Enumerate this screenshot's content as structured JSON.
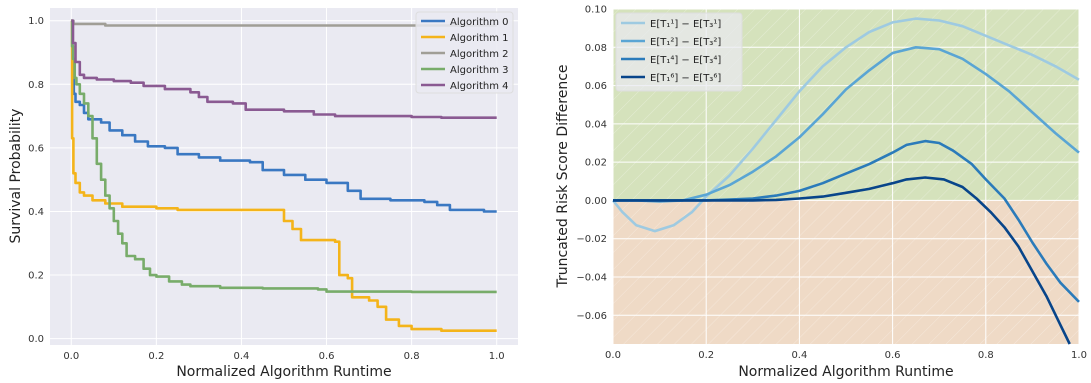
{
  "chart_data": [
    {
      "type": "line",
      "xlabel": "Normalized Algorithm Runtime",
      "ylabel": "Survival Probability",
      "xlim": [
        -0.05,
        1.05
      ],
      "ylim": [
        -0.02,
        1.04
      ],
      "xticks": [
        "0.0",
        "0.2",
        "0.4",
        "0.6",
        "0.8",
        "1.0"
      ],
      "yticks": [
        "0.0",
        "0.2",
        "0.4",
        "0.6",
        "0.8",
        "1.0"
      ],
      "grid": true,
      "legend_position": "top-right",
      "step": true,
      "series": [
        {
          "name": "Algorithm 0",
          "color": "#3a78c2",
          "points": [
            [
              0.0,
              1.0
            ],
            [
              0.003,
              0.85
            ],
            [
              0.006,
              0.77
            ],
            [
              0.01,
              0.745
            ],
            [
              0.02,
              0.735
            ],
            [
              0.03,
              0.71
            ],
            [
              0.04,
              0.69
            ],
            [
              0.07,
              0.68
            ],
            [
              0.09,
              0.655
            ],
            [
              0.12,
              0.64
            ],
            [
              0.15,
              0.62
            ],
            [
              0.18,
              0.605
            ],
            [
              0.22,
              0.6
            ],
            [
              0.25,
              0.58
            ],
            [
              0.3,
              0.57
            ],
            [
              0.35,
              0.56
            ],
            [
              0.42,
              0.555
            ],
            [
              0.45,
              0.53
            ],
            [
              0.5,
              0.515
            ],
            [
              0.55,
              0.5
            ],
            [
              0.6,
              0.49
            ],
            [
              0.65,
              0.465
            ],
            [
              0.68,
              0.44
            ],
            [
              0.75,
              0.435
            ],
            [
              0.83,
              0.43
            ],
            [
              0.86,
              0.42
            ],
            [
              0.89,
              0.405
            ],
            [
              0.97,
              0.4
            ],
            [
              1.0,
              0.4
            ]
          ]
        },
        {
          "name": "Algorithm 1",
          "color": "#f4b41a",
          "points": [
            [
              0.0,
              1.0
            ],
            [
              0.002,
              0.63
            ],
            [
              0.005,
              0.52
            ],
            [
              0.01,
              0.49
            ],
            [
              0.02,
              0.46
            ],
            [
              0.03,
              0.45
            ],
            [
              0.05,
              0.435
            ],
            [
              0.08,
              0.425
            ],
            [
              0.12,
              0.415
            ],
            [
              0.2,
              0.41
            ],
            [
              0.25,
              0.405
            ],
            [
              0.35,
              0.405
            ],
            [
              0.46,
              0.405
            ],
            [
              0.5,
              0.37
            ],
            [
              0.52,
              0.345
            ],
            [
              0.54,
              0.31
            ],
            [
              0.62,
              0.305
            ],
            [
              0.63,
              0.2
            ],
            [
              0.65,
              0.19
            ],
            [
              0.66,
              0.13
            ],
            [
              0.7,
              0.12
            ],
            [
              0.72,
              0.1
            ],
            [
              0.74,
              0.06
            ],
            [
              0.77,
              0.04
            ],
            [
              0.8,
              0.03
            ],
            [
              0.87,
              0.025
            ],
            [
              1.0,
              0.025
            ]
          ]
        },
        {
          "name": "Algorithm 2",
          "color": "#a09e96",
          "points": [
            [
              0.0,
              1.0
            ],
            [
              0.005,
              0.99
            ],
            [
              0.08,
              0.985
            ],
            [
              1.0,
              0.985
            ]
          ]
        },
        {
          "name": "Algorithm 3",
          "color": "#78ac6a",
          "points": [
            [
              0.0,
              1.0
            ],
            [
              0.002,
              0.92
            ],
            [
              0.004,
              0.88
            ],
            [
              0.008,
              0.82
            ],
            [
              0.012,
              0.8
            ],
            [
              0.02,
              0.77
            ],
            [
              0.03,
              0.74
            ],
            [
              0.04,
              0.7
            ],
            [
              0.05,
              0.63
            ],
            [
              0.06,
              0.55
            ],
            [
              0.07,
              0.5
            ],
            [
              0.08,
              0.45
            ],
            [
              0.09,
              0.41
            ],
            [
              0.1,
              0.37
            ],
            [
              0.11,
              0.33
            ],
            [
              0.12,
              0.3
            ],
            [
              0.13,
              0.26
            ],
            [
              0.15,
              0.25
            ],
            [
              0.17,
              0.22
            ],
            [
              0.185,
              0.2
            ],
            [
              0.2,
              0.195
            ],
            [
              0.23,
              0.18
            ],
            [
              0.26,
              0.17
            ],
            [
              0.28,
              0.165
            ],
            [
              0.35,
              0.16
            ],
            [
              0.45,
              0.158
            ],
            [
              0.58,
              0.155
            ],
            [
              0.6,
              0.148
            ],
            [
              0.8,
              0.147
            ],
            [
              1.0,
              0.147
            ]
          ]
        },
        {
          "name": "Algorithm 4",
          "color": "#8a5a92",
          "points": [
            [
              0.0,
              1.0
            ],
            [
              0.004,
              0.93
            ],
            [
              0.01,
              0.87
            ],
            [
              0.02,
              0.83
            ],
            [
              0.03,
              0.82
            ],
            [
              0.06,
              0.815
            ],
            [
              0.1,
              0.81
            ],
            [
              0.14,
              0.805
            ],
            [
              0.17,
              0.795
            ],
            [
              0.22,
              0.785
            ],
            [
              0.28,
              0.775
            ],
            [
              0.3,
              0.76
            ],
            [
              0.32,
              0.745
            ],
            [
              0.38,
              0.74
            ],
            [
              0.41,
              0.72
            ],
            [
              0.5,
              0.715
            ],
            [
              0.56,
              0.715
            ],
            [
              0.57,
              0.705
            ],
            [
              0.62,
              0.7
            ],
            [
              0.8,
              0.697
            ],
            [
              0.87,
              0.695
            ],
            [
              1.0,
              0.695
            ]
          ]
        }
      ]
    },
    {
      "type": "line",
      "xlabel": "Normalized Algorithm Runtime",
      "ylabel": "Truncated Risk Score Difference",
      "xlim": [
        0.0,
        1.0
      ],
      "ylim": [
        -0.075,
        0.1
      ],
      "xticks": [
        "0.0",
        "0.2",
        "0.4",
        "0.6",
        "0.8",
        "1.0"
      ],
      "yticks": [
        "−0.06",
        "−0.04",
        "−0.02",
        "0.00",
        "0.02",
        "0.04",
        "0.06",
        "0.08",
        "0.10"
      ],
      "grid": true,
      "legend_position": "top-left",
      "background_regions": [
        {
          "from": 0.0,
          "to": 0.1,
          "color": "#d5e2bc"
        },
        {
          "from": -0.075,
          "to": 0.0,
          "color": "#efdac6"
        }
      ],
      "series": [
        {
          "name": "E[T₁¹] − E[T₃¹]",
          "color": "#9ecae1",
          "points": [
            [
              0.0,
              0.0
            ],
            [
              0.02,
              -0.006
            ],
            [
              0.05,
              -0.013
            ],
            [
              0.09,
              -0.016
            ],
            [
              0.13,
              -0.013
            ],
            [
              0.17,
              -0.006
            ],
            [
              0.2,
              0.002
            ],
            [
              0.25,
              0.013
            ],
            [
              0.3,
              0.027
            ],
            [
              0.35,
              0.042
            ],
            [
              0.4,
              0.057
            ],
            [
              0.45,
              0.07
            ],
            [
              0.5,
              0.08
            ],
            [
              0.55,
              0.088
            ],
            [
              0.6,
              0.093
            ],
            [
              0.65,
              0.095
            ],
            [
              0.7,
              0.094
            ],
            [
              0.75,
              0.091
            ],
            [
              0.8,
              0.086
            ],
            [
              0.85,
              0.081
            ],
            [
              0.9,
              0.076
            ],
            [
              0.95,
              0.07
            ],
            [
              1.0,
              0.063
            ]
          ]
        },
        {
          "name": "E[T₁²] − E[T₃²]",
          "color": "#5aa5d4",
          "points": [
            [
              0.0,
              0.0
            ],
            [
              0.05,
              0.0
            ],
            [
              0.1,
              -0.0005
            ],
            [
              0.15,
              0.0
            ],
            [
              0.2,
              0.003
            ],
            [
              0.25,
              0.008
            ],
            [
              0.3,
              0.015
            ],
            [
              0.35,
              0.023
            ],
            [
              0.4,
              0.033
            ],
            [
              0.45,
              0.045
            ],
            [
              0.5,
              0.058
            ],
            [
              0.55,
              0.068
            ],
            [
              0.6,
              0.077
            ],
            [
              0.65,
              0.08
            ],
            [
              0.7,
              0.079
            ],
            [
              0.75,
              0.074
            ],
            [
              0.8,
              0.066
            ],
            [
              0.85,
              0.057
            ],
            [
              0.9,
              0.046
            ],
            [
              0.95,
              0.035
            ],
            [
              1.0,
              0.025
            ]
          ]
        },
        {
          "name": "E[T₁⁴] − E[T₃⁴]",
          "color": "#2b7bba",
          "points": [
            [
              0.0,
              0.0
            ],
            [
              0.1,
              0.0
            ],
            [
              0.2,
              0.0
            ],
            [
              0.25,
              0.0005
            ],
            [
              0.3,
              0.001
            ],
            [
              0.35,
              0.0025
            ],
            [
              0.4,
              0.005
            ],
            [
              0.45,
              0.009
            ],
            [
              0.5,
              0.014
            ],
            [
              0.55,
              0.019
            ],
            [
              0.6,
              0.025
            ],
            [
              0.63,
              0.029
            ],
            [
              0.67,
              0.031
            ],
            [
              0.7,
              0.03
            ],
            [
              0.73,
              0.026
            ],
            [
              0.77,
              0.019
            ],
            [
              0.8,
              0.011
            ],
            [
              0.84,
              0.001
            ],
            [
              0.87,
              -0.01
            ],
            [
              0.9,
              -0.022
            ],
            [
              0.93,
              -0.033
            ],
            [
              0.96,
              -0.043
            ],
            [
              1.0,
              -0.053
            ]
          ]
        },
        {
          "name": "E[T₁⁶] − E[T₃⁶]",
          "color": "#08458a",
          "points": [
            [
              0.0,
              0.0
            ],
            [
              0.1,
              0.0
            ],
            [
              0.2,
              0.0
            ],
            [
              0.3,
              0.0
            ],
            [
              0.35,
              0.0003
            ],
            [
              0.4,
              0.001
            ],
            [
              0.45,
              0.002
            ],
            [
              0.5,
              0.004
            ],
            [
              0.55,
              0.006
            ],
            [
              0.6,
              0.009
            ],
            [
              0.63,
              0.011
            ],
            [
              0.67,
              0.012
            ],
            [
              0.71,
              0.011
            ],
            [
              0.75,
              0.007
            ],
            [
              0.78,
              0.001
            ],
            [
              0.81,
              -0.006
            ],
            [
              0.84,
              -0.014
            ],
            [
              0.87,
              -0.024
            ],
            [
              0.9,
              -0.037
            ],
            [
              0.93,
              -0.05
            ],
            [
              0.96,
              -0.065
            ],
            [
              0.98,
              -0.075
            ]
          ]
        }
      ]
    }
  ]
}
